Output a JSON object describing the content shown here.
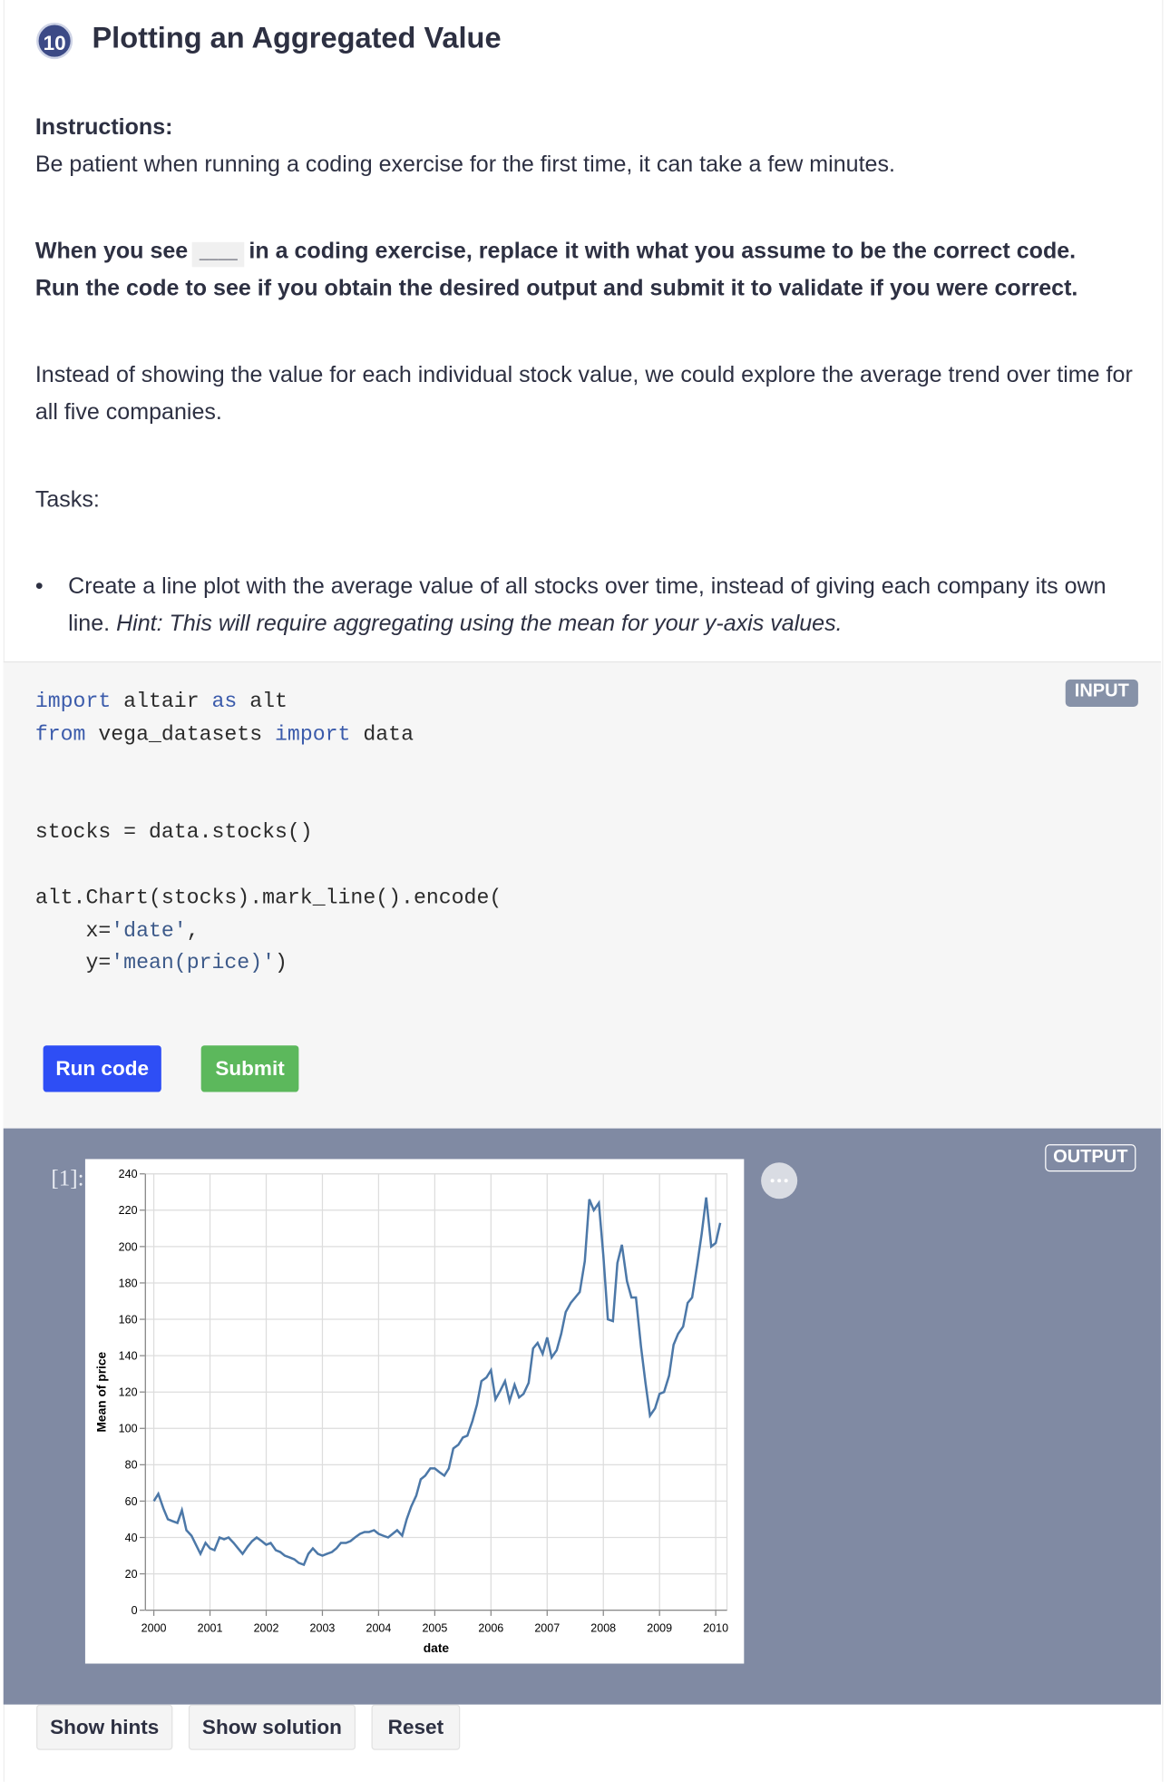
{
  "header": {
    "number": "10",
    "title": "Plotting an Aggregated Value"
  },
  "instructions": {
    "label": "Instructions:",
    "note": "Be patient when running a coding exercise for the first time, it can take a few minutes.",
    "blank_rule": {
      "before": "When you see",
      "code": "____",
      "after": "in a coding exercise, replace it with what you assume to be the correct code. Run the code to see if you obtain the desired output and submit it to validate if you were correct."
    },
    "intro": "Instead of showing the value for each individual stock value, we could explore the average trend over time for all five companies.",
    "tasks_label": "Tasks:",
    "tasks": [
      {
        "text": "Create a line plot with the average value of all stocks over time, instead of giving each company its own line.",
        "hint": "Hint: This will require aggregating using the mean for your y-axis values."
      }
    ]
  },
  "code": {
    "badge": "INPUT",
    "lines": [
      [
        {
          "text": "import",
          "color": "#3b5bab"
        },
        {
          "text": " altair ",
          "color": "#2b2b2b"
        },
        {
          "text": "as",
          "color": "#3b5bab"
        },
        {
          "text": " alt",
          "color": "#2b2b2b"
        }
      ],
      [
        {
          "text": "from",
          "color": "#3b5bab"
        },
        {
          "text": " vega_datasets ",
          "color": "#2b2b2b"
        },
        {
          "text": "import",
          "color": "#3b5bab"
        },
        {
          "text": " data",
          "color": "#2b2b2b"
        }
      ],
      [],
      [],
      [
        {
          "text": "stocks = data.stocks()",
          "color": "#2b2b2b"
        }
      ],
      [],
      [
        {
          "text": "alt.Chart(stocks).mark_line().encode(",
          "color": "#2b2b2b"
        }
      ],
      [
        {
          "text": "    x=",
          "color": "#2b2b2b"
        },
        {
          "text": "'date'",
          "color": "#3d5a8a"
        },
        {
          "text": ",",
          "color": "#2b2b2b"
        }
      ],
      [
        {
          "text": "    y=",
          "color": "#2b2b2b"
        },
        {
          "text": "'mean(price)'",
          "color": "#3d5a8a"
        },
        {
          "text": ")",
          "color": "#2b2b2b"
        }
      ]
    ],
    "run": "Run code",
    "submit": "Submit"
  },
  "output": {
    "badge": "OUTPUT",
    "prompt": "[1]:"
  },
  "footer": {
    "hints": "Show hints",
    "solution": "Show solution",
    "reset": "Reset"
  },
  "chart_data": {
    "type": "line",
    "x_label": "date",
    "y_label": "Mean of price",
    "color": "#4c78a8",
    "grid": true,
    "xlim": [
      1999.85,
      2010.2
    ],
    "xticks": [
      2000,
      2001,
      2002,
      2003,
      2004,
      2005,
      2006,
      2007,
      2008,
      2009,
      2010
    ],
    "ylim": [
      0,
      240
    ],
    "yticks": [
      0,
      20,
      40,
      60,
      80,
      100,
      120,
      140,
      160,
      180,
      200,
      220,
      240
    ],
    "x": [
      2000,
      2000.08,
      2000.17,
      2000.25,
      2000.33,
      2000.42,
      2000.5,
      2000.58,
      2000.67,
      2000.75,
      2000.83,
      2000.92,
      2001,
      2001.08,
      2001.17,
      2001.25,
      2001.33,
      2001.42,
      2001.5,
      2001.58,
      2001.67,
      2001.75,
      2001.83,
      2001.92,
      2002,
      2002.08,
      2002.17,
      2002.25,
      2002.33,
      2002.42,
      2002.5,
      2002.58,
      2002.67,
      2002.75,
      2002.83,
      2002.92,
      2003,
      2003.08,
      2003.17,
      2003.25,
      2003.33,
      2003.42,
      2003.5,
      2003.58,
      2003.67,
      2003.75,
      2003.83,
      2003.92,
      2004,
      2004.08,
      2004.17,
      2004.25,
      2004.33,
      2004.42,
      2004.5,
      2004.58,
      2004.67,
      2004.75,
      2004.83,
      2004.92,
      2005,
      2005.08,
      2005.17,
      2005.25,
      2005.33,
      2005.42,
      2005.5,
      2005.58,
      2005.67,
      2005.75,
      2005.83,
      2005.92,
      2006,
      2006.08,
      2006.17,
      2006.25,
      2006.33,
      2006.42,
      2006.5,
      2006.58,
      2006.67,
      2006.75,
      2006.83,
      2006.92,
      2007,
      2007.08,
      2007.17,
      2007.25,
      2007.33,
      2007.42,
      2007.5,
      2007.58,
      2007.67,
      2007.75,
      2007.83,
      2007.92,
      2008,
      2008.08,
      2008.17,
      2008.25,
      2008.33,
      2008.42,
      2008.5,
      2008.58,
      2008.67,
      2008.75,
      2008.83,
      2008.92,
      2009,
      2009.08,
      2009.17,
      2009.25,
      2009.33,
      2009.42,
      2009.5,
      2009.58,
      2009.67,
      2009.75,
      2009.83,
      2009.92,
      2010,
      2010.08
    ],
    "values": [
      60,
      64,
      56,
      50,
      49,
      48,
      55,
      44,
      41,
      36,
      31,
      37,
      34,
      33,
      40,
      39,
      40,
      37,
      34,
      31,
      35,
      38,
      40,
      38,
      36,
      37,
      33,
      32,
      30,
      29,
      28,
      26,
      25,
      31,
      34,
      31,
      30,
      31,
      32,
      34,
      37,
      37,
      38,
      40,
      42,
      43,
      43,
      44,
      42,
      41,
      40,
      42,
      44,
      41,
      50,
      57,
      63,
      72,
      74,
      78,
      78,
      76,
      74,
      78,
      89,
      91,
      95,
      96,
      104,
      113,
      126,
      128,
      132,
      116,
      121,
      126,
      115,
      124,
      117,
      119,
      125,
      144,
      147,
      141,
      150,
      139,
      143,
      152,
      164,
      169,
      172,
      175,
      192,
      226,
      220,
      224,
      195,
      160,
      159,
      191,
      201,
      181,
      172,
      172,
      145,
      125,
      107,
      111,
      119,
      120,
      129,
      146,
      152,
      156,
      169,
      172,
      190,
      207,
      227,
      200,
      202,
      213
    ]
  }
}
